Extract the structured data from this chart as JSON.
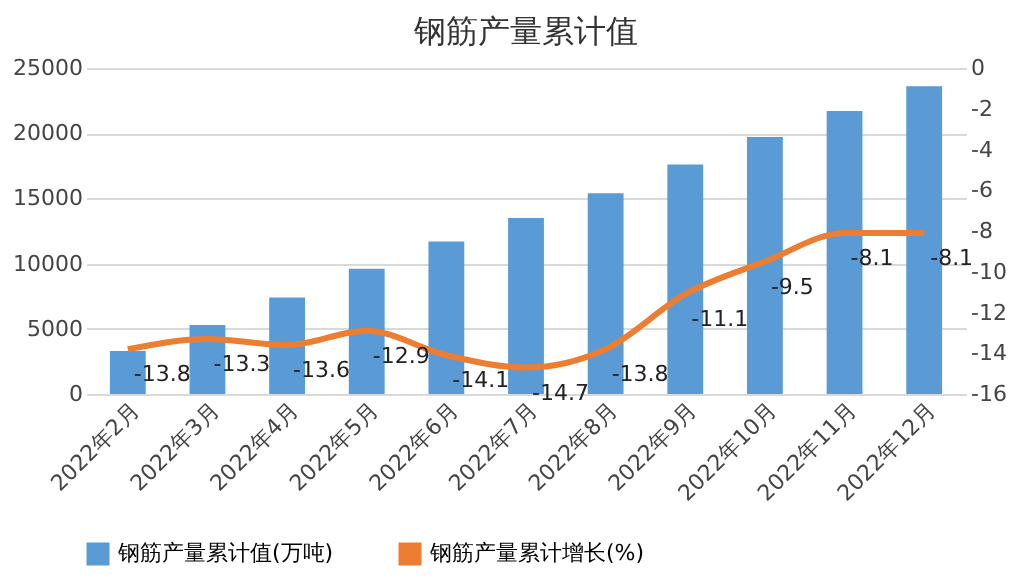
{
  "chart_data": {
    "type": "bar",
    "title": "钢筋产量累计值",
    "categories": [
      "2022年2月",
      "2022年3月",
      "2022年4月",
      "2022年5月",
      "2022年6月",
      "2022年7月",
      "2022年8月",
      "2022年9月",
      "2022年10月",
      "2022年11月",
      "2022年12月"
    ],
    "series": [
      {
        "name": "钢筋产量累计值(万吨)",
        "color": "#5b9bd5",
        "values": [
          3300,
          5300,
          7400,
          9600,
          11700,
          13500,
          15400,
          17600,
          19700,
          21700,
          23600
        ]
      },
      {
        "name": "钢筋产量累计增长(%)",
        "type": "line",
        "axis": "y2",
        "color": "#ed7d31",
        "values": [
          -13.8,
          -13.3,
          -13.6,
          -12.9,
          -14.1,
          -14.7,
          -13.8,
          -11.1,
          -9.5,
          -8.1,
          -8.1
        ],
        "value_labels": [
          "-13.8",
          "-13.3",
          "-13.6",
          "-12.9",
          "-14.1",
          "-14.7",
          "-13.8",
          "-11.1",
          "-9.5",
          "-8.1",
          "-8.1"
        ]
      }
    ],
    "ylim": [
      0,
      25000
    ],
    "yticks": [
      0,
      5000,
      10000,
      15000,
      20000,
      25000
    ],
    "y2lim": [
      -16,
      0
    ],
    "y2ticks": [
      -16,
      -14,
      -12,
      -10,
      -8,
      -6,
      -4,
      -2,
      0
    ],
    "grid": "y",
    "legend": "bottom"
  }
}
